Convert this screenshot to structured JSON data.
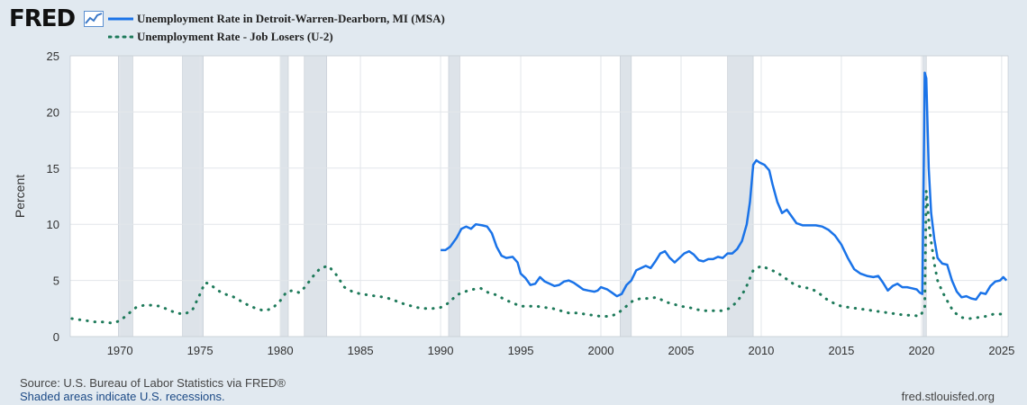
{
  "logo": {
    "text": "FRED",
    "icon": "chart-line-icon"
  },
  "legend": [
    {
      "label": "Unemployment Rate in Detroit-Warren-Dearborn, MI (MSA)",
      "style": "solid",
      "color": "#1a73e8"
    },
    {
      "label": "Unemployment Rate - Job Losers (U-2)",
      "style": "dotted",
      "color": "#1e7a5a"
    }
  ],
  "chart_data": {
    "type": "line",
    "title": "",
    "xlabel": "",
    "ylabel": "Percent",
    "xlim": [
      1966.9,
      2025.4
    ],
    "ylim": [
      0,
      25
    ],
    "x_ticks": [
      1970,
      1975,
      1980,
      1985,
      1990,
      1995,
      2000,
      2005,
      2010,
      2015,
      2020,
      2025
    ],
    "y_ticks": [
      0,
      5,
      10,
      15,
      20,
      25
    ],
    "grid": true,
    "recessions": [
      [
        1969.9,
        1970.8
      ],
      [
        1973.9,
        1975.2
      ],
      [
        1980.0,
        1980.5
      ],
      [
        1981.5,
        1982.9
      ],
      [
        1990.5,
        1991.2
      ],
      [
        2001.2,
        2001.9
      ],
      [
        2007.9,
        2009.5
      ],
      [
        2020.1,
        2020.3
      ]
    ],
    "series": [
      {
        "name": "Unemployment Rate in Detroit-Warren-Dearborn, MI (MSA)",
        "style": "solid",
        "color": "#1a73e8",
        "points": [
          [
            1990.0,
            7.7
          ],
          [
            1990.3,
            7.7
          ],
          [
            1990.6,
            8.0
          ],
          [
            1991.0,
            8.8
          ],
          [
            1991.3,
            9.6
          ],
          [
            1991.6,
            9.8
          ],
          [
            1991.9,
            9.6
          ],
          [
            1992.2,
            10.0
          ],
          [
            1992.6,
            9.9
          ],
          [
            1992.9,
            9.8
          ],
          [
            1993.2,
            9.2
          ],
          [
            1993.5,
            8.0
          ],
          [
            1993.8,
            7.2
          ],
          [
            1994.1,
            7.0
          ],
          [
            1994.5,
            7.1
          ],
          [
            1994.8,
            6.6
          ],
          [
            1995.0,
            5.6
          ],
          [
            1995.3,
            5.2
          ],
          [
            1995.6,
            4.6
          ],
          [
            1995.9,
            4.7
          ],
          [
            1996.2,
            5.3
          ],
          [
            1996.5,
            4.9
          ],
          [
            1996.8,
            4.7
          ],
          [
            1997.1,
            4.5
          ],
          [
            1997.4,
            4.6
          ],
          [
            1997.7,
            4.9
          ],
          [
            1998.0,
            5.0
          ],
          [
            1998.3,
            4.8
          ],
          [
            1998.6,
            4.5
          ],
          [
            1998.9,
            4.2
          ],
          [
            1999.2,
            4.1
          ],
          [
            1999.6,
            4.0
          ],
          [
            1999.8,
            4.1
          ],
          [
            2000.0,
            4.4
          ],
          [
            2000.4,
            4.2
          ],
          [
            2000.7,
            3.9
          ],
          [
            2001.0,
            3.6
          ],
          [
            2001.3,
            3.8
          ],
          [
            2001.6,
            4.6
          ],
          [
            2001.9,
            5.0
          ],
          [
            2002.2,
            5.9
          ],
          [
            2002.5,
            6.1
          ],
          [
            2002.8,
            6.3
          ],
          [
            2003.1,
            6.1
          ],
          [
            2003.4,
            6.7
          ],
          [
            2003.7,
            7.4
          ],
          [
            2004.0,
            7.6
          ],
          [
            2004.3,
            7.0
          ],
          [
            2004.6,
            6.6
          ],
          [
            2004.9,
            7.0
          ],
          [
            2005.2,
            7.4
          ],
          [
            2005.5,
            7.6
          ],
          [
            2005.8,
            7.3
          ],
          [
            2006.1,
            6.8
          ],
          [
            2006.4,
            6.7
          ],
          [
            2006.7,
            6.9
          ],
          [
            2007.0,
            6.9
          ],
          [
            2007.3,
            7.1
          ],
          [
            2007.6,
            7.0
          ],
          [
            2007.9,
            7.4
          ],
          [
            2008.2,
            7.4
          ],
          [
            2008.5,
            7.8
          ],
          [
            2008.8,
            8.5
          ],
          [
            2009.1,
            10.0
          ],
          [
            2009.3,
            12.0
          ],
          [
            2009.5,
            15.3
          ],
          [
            2009.7,
            15.7
          ],
          [
            2009.9,
            15.5
          ],
          [
            2010.2,
            15.3
          ],
          [
            2010.5,
            14.8
          ],
          [
            2010.7,
            13.6
          ],
          [
            2011.0,
            12.0
          ],
          [
            2011.3,
            11.0
          ],
          [
            2011.6,
            11.3
          ],
          [
            2011.9,
            10.7
          ],
          [
            2012.2,
            10.1
          ],
          [
            2012.6,
            9.9
          ],
          [
            2013.0,
            9.9
          ],
          [
            2013.4,
            9.9
          ],
          [
            2013.8,
            9.8
          ],
          [
            2014.2,
            9.5
          ],
          [
            2014.6,
            9.0
          ],
          [
            2015.0,
            8.2
          ],
          [
            2015.4,
            7.0
          ],
          [
            2015.8,
            6.0
          ],
          [
            2016.2,
            5.6
          ],
          [
            2016.6,
            5.4
          ],
          [
            2017.0,
            5.3
          ],
          [
            2017.3,
            5.4
          ],
          [
            2017.6,
            4.8
          ],
          [
            2017.9,
            4.1
          ],
          [
            2018.2,
            4.5
          ],
          [
            2018.5,
            4.7
          ],
          [
            2018.8,
            4.4
          ],
          [
            2019.1,
            4.4
          ],
          [
            2019.4,
            4.3
          ],
          [
            2019.7,
            4.2
          ],
          [
            2019.9,
            3.9
          ],
          [
            2020.05,
            3.8
          ],
          [
            2020.2,
            23.5
          ],
          [
            2020.3,
            23.0
          ],
          [
            2020.45,
            15.0
          ],
          [
            2020.6,
            11.0
          ],
          [
            2020.8,
            8.7
          ],
          [
            2021.0,
            7.0
          ],
          [
            2021.3,
            6.5
          ],
          [
            2021.6,
            6.4
          ],
          [
            2021.9,
            5.0
          ],
          [
            2022.2,
            4.0
          ],
          [
            2022.5,
            3.5
          ],
          [
            2022.8,
            3.6
          ],
          [
            2023.1,
            3.4
          ],
          [
            2023.4,
            3.3
          ],
          [
            2023.7,
            3.9
          ],
          [
            2024.0,
            3.8
          ],
          [
            2024.3,
            4.5
          ],
          [
            2024.6,
            4.9
          ],
          [
            2024.9,
            5.0
          ],
          [
            2025.1,
            5.3
          ],
          [
            2025.3,
            5.0
          ]
        ]
      },
      {
        "name": "Unemployment Rate - Job Losers (U-2)",
        "style": "dotted",
        "color": "#1e7a5a",
        "points": [
          [
            1967.0,
            1.6
          ],
          [
            1967.5,
            1.5
          ],
          [
            1968.0,
            1.4
          ],
          [
            1968.5,
            1.3
          ],
          [
            1969.0,
            1.3
          ],
          [
            1969.5,
            1.2
          ],
          [
            1970.0,
            1.4
          ],
          [
            1970.5,
            2.0
          ],
          [
            1971.0,
            2.6
          ],
          [
            1971.5,
            2.8
          ],
          [
            1972.0,
            2.8
          ],
          [
            1972.5,
            2.7
          ],
          [
            1973.0,
            2.4
          ],
          [
            1973.5,
            2.1
          ],
          [
            1974.0,
            2.0
          ],
          [
            1974.5,
            2.3
          ],
          [
            1975.0,
            3.8
          ],
          [
            1975.3,
            4.8
          ],
          [
            1975.6,
            4.7
          ],
          [
            1976.0,
            4.2
          ],
          [
            1976.5,
            3.8
          ],
          [
            1977.0,
            3.6
          ],
          [
            1977.5,
            3.2
          ],
          [
            1978.0,
            2.8
          ],
          [
            1978.5,
            2.5
          ],
          [
            1979.0,
            2.3
          ],
          [
            1979.5,
            2.5
          ],
          [
            1980.0,
            3.2
          ],
          [
            1980.4,
            4.0
          ],
          [
            1980.8,
            4.1
          ],
          [
            1981.2,
            3.9
          ],
          [
            1981.6,
            4.5
          ],
          [
            1982.0,
            5.3
          ],
          [
            1982.5,
            6.1
          ],
          [
            1983.0,
            6.3
          ],
          [
            1983.5,
            5.5
          ],
          [
            1984.0,
            4.4
          ],
          [
            1984.5,
            4.0
          ],
          [
            1985.0,
            3.8
          ],
          [
            1985.5,
            3.7
          ],
          [
            1986.0,
            3.6
          ],
          [
            1986.5,
            3.5
          ],
          [
            1987.0,
            3.3
          ],
          [
            1987.5,
            3.0
          ],
          [
            1988.0,
            2.8
          ],
          [
            1988.5,
            2.6
          ],
          [
            1989.0,
            2.5
          ],
          [
            1989.5,
            2.5
          ],
          [
            1990.0,
            2.6
          ],
          [
            1990.5,
            3.0
          ],
          [
            1991.0,
            3.7
          ],
          [
            1991.5,
            4.0
          ],
          [
            1992.0,
            4.2
          ],
          [
            1992.5,
            4.3
          ],
          [
            1993.0,
            3.9
          ],
          [
            1993.5,
            3.7
          ],
          [
            1994.0,
            3.3
          ],
          [
            1994.5,
            3.0
          ],
          [
            1995.0,
            2.7
          ],
          [
            1995.5,
            2.7
          ],
          [
            1996.0,
            2.7
          ],
          [
            1996.5,
            2.6
          ],
          [
            1997.0,
            2.5
          ],
          [
            1997.5,
            2.3
          ],
          [
            1998.0,
            2.1
          ],
          [
            1998.5,
            2.1
          ],
          [
            1999.0,
            2.0
          ],
          [
            1999.5,
            1.9
          ],
          [
            2000.0,
            1.8
          ],
          [
            2000.5,
            1.8
          ],
          [
            2001.0,
            2.0
          ],
          [
            2001.5,
            2.6
          ],
          [
            2002.0,
            3.2
          ],
          [
            2002.5,
            3.4
          ],
          [
            2003.0,
            3.4
          ],
          [
            2003.5,
            3.5
          ],
          [
            2004.0,
            3.1
          ],
          [
            2004.5,
            2.9
          ],
          [
            2005.0,
            2.7
          ],
          [
            2005.5,
            2.6
          ],
          [
            2006.0,
            2.4
          ],
          [
            2006.5,
            2.3
          ],
          [
            2007.0,
            2.3
          ],
          [
            2007.5,
            2.3
          ],
          [
            2008.0,
            2.5
          ],
          [
            2008.5,
            3.1
          ],
          [
            2009.0,
            4.2
          ],
          [
            2009.5,
            5.9
          ],
          [
            2010.0,
            6.3
          ],
          [
            2010.5,
            6.0
          ],
          [
            2011.0,
            5.7
          ],
          [
            2011.5,
            5.2
          ],
          [
            2012.0,
            4.7
          ],
          [
            2012.5,
            4.4
          ],
          [
            2013.0,
            4.3
          ],
          [
            2013.5,
            4.0
          ],
          [
            2014.0,
            3.4
          ],
          [
            2014.5,
            3.0
          ],
          [
            2015.0,
            2.7
          ],
          [
            2015.5,
            2.6
          ],
          [
            2016.0,
            2.5
          ],
          [
            2016.5,
            2.4
          ],
          [
            2017.0,
            2.3
          ],
          [
            2017.5,
            2.2
          ],
          [
            2018.0,
            2.1
          ],
          [
            2018.5,
            2.0
          ],
          [
            2019.0,
            1.9
          ],
          [
            2019.5,
            1.9
          ],
          [
            2019.9,
            1.8
          ],
          [
            2020.2,
            2.5
          ],
          [
            2020.3,
            13.0
          ],
          [
            2020.5,
            9.5
          ],
          [
            2020.8,
            6.5
          ],
          [
            2021.0,
            5.0
          ],
          [
            2021.3,
            4.0
          ],
          [
            2021.6,
            3.2
          ],
          [
            2022.0,
            2.2
          ],
          [
            2022.5,
            1.7
          ],
          [
            2023.0,
            1.6
          ],
          [
            2023.5,
            1.7
          ],
          [
            2024.0,
            1.8
          ],
          [
            2024.5,
            2.0
          ],
          [
            2025.0,
            2.0
          ],
          [
            2025.3,
            1.9
          ]
        ]
      }
    ]
  },
  "footer": {
    "source": "Source: U.S. Bureau of Labor Statistics via FRED®",
    "note": "Shaded areas indicate U.S. recessions.",
    "site": "fred.stlouisfed.org"
  }
}
